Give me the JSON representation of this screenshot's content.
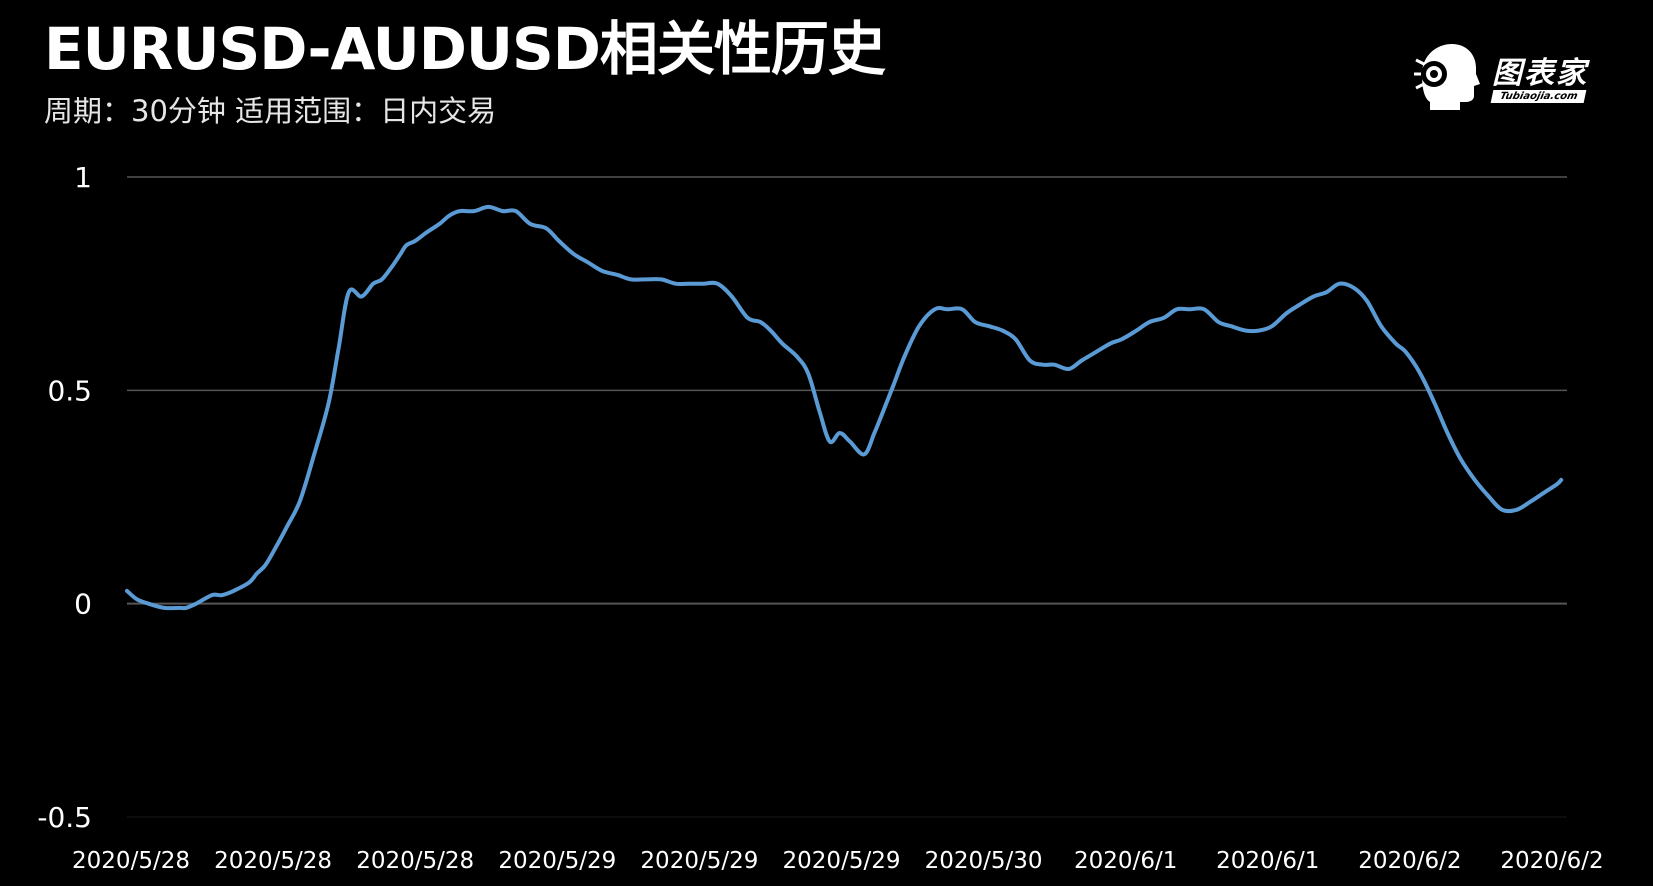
{
  "header": {
    "title": "EURUSD-AUDUSD相关性历史",
    "subtitle": "周期：30分钟  适用范围：日内交易"
  },
  "logo": {
    "brand": "图表家",
    "site": "Tubiaojia.com"
  },
  "colors": {
    "background": "#000000",
    "line": "#5b9bd5",
    "grid": "#555555",
    "text": "#ffffff"
  },
  "chart_data": {
    "type": "line",
    "title": "EURUSD-AUDUSD相关性历史",
    "subtitle": "周期：30分钟  适用范围：日内交易",
    "xlabel": "",
    "ylabel": "",
    "ylim": [
      -0.5,
      1
    ],
    "yticks": [
      1,
      0.5,
      0,
      -0.5
    ],
    "ytick_labels": [
      "1",
      "0.5",
      "0",
      "-0.5"
    ],
    "grid": true,
    "legend": "none",
    "x_tick_labels": [
      "2020/5/28",
      "2020/5/28",
      "2020/5/28",
      "2020/5/29",
      "2020/5/29",
      "2020/5/29",
      "2020/5/30",
      "2020/6/1",
      "2020/6/1",
      "2020/6/2",
      "2020/6/2"
    ],
    "x_index_range": [
      0,
      100
    ],
    "series": [
      {
        "color": "#5b9bd5",
        "x": [
          0,
          0.7,
          1.5,
          2.6,
          3.7,
          4.1,
          4.8,
          5.9,
          6.6,
          7.4,
          8.5,
          9,
          9.6,
          10.3,
          11.1,
          12,
          13,
          14,
          14.7,
          15.4,
          16.3,
          17.1,
          17.7,
          18.4,
          19,
          19.4,
          20,
          20.8,
          21.7,
          22.4,
          23.1,
          24.1,
          25.1,
          26.1,
          27,
          28,
          29.1,
          30,
          31,
          32,
          33,
          34.1,
          35,
          36,
          37.1,
          38.1,
          39,
          40,
          41,
          42,
          43.1,
          44,
          44.7,
          45.5,
          46.5,
          47.3,
          48.1,
          48.8,
          49.5,
          50.2,
          51.2,
          51.9,
          52.5,
          53.2,
          54,
          55,
          56.1,
          57,
          58,
          58.9,
          59.9,
          60.8,
          61.7,
          62.7,
          63.6,
          64.4,
          65.4,
          66.3,
          67.3,
          68.3,
          69.1,
          70.1,
          71,
          72,
          72.9,
          73.8,
          74.8,
          75.8,
          76.7,
          77.7,
          78.6,
          79.5,
          80.5,
          81.4,
          82.4,
          83.3,
          84.2,
          85.2,
          86.1,
          87.1,
          88.1,
          88.8,
          89.8,
          90.8,
          91.7,
          92.6,
          93.6,
          94.6,
          95.5,
          96.5,
          97.5,
          98.4,
          99.3,
          99.6
        ],
        "y": [
          0.03,
          0.01,
          0,
          -0.01,
          -0.01,
          -0.01,
          0,
          0.02,
          0.02,
          0.03,
          0.05,
          0.07,
          0.09,
          0.13,
          0.18,
          0.24,
          0.35,
          0.47,
          0.6,
          0.73,
          0.72,
          0.75,
          0.76,
          0.79,
          0.82,
          0.84,
          0.85,
          0.87,
          0.89,
          0.91,
          0.92,
          0.92,
          0.93,
          0.92,
          0.92,
          0.89,
          0.88,
          0.85,
          0.82,
          0.8,
          0.78,
          0.77,
          0.76,
          0.76,
          0.76,
          0.75,
          0.75,
          0.75,
          0.75,
          0.72,
          0.67,
          0.66,
          0.64,
          0.61,
          0.58,
          0.54,
          0.45,
          0.38,
          0.4,
          0.38,
          0.35,
          0.4,
          0.45,
          0.51,
          0.58,
          0.65,
          0.69,
          0.69,
          0.69,
          0.66,
          0.65,
          0.64,
          0.62,
          0.57,
          0.56,
          0.56,
          0.55,
          0.57,
          0.59,
          0.61,
          0.62,
          0.64,
          0.66,
          0.67,
          0.69,
          0.69,
          0.69,
          0.66,
          0.65,
          0.64,
          0.64,
          0.65,
          0.68,
          0.7,
          0.72,
          0.73,
          0.75,
          0.74,
          0.71,
          0.65,
          0.61,
          0.59,
          0.54,
          0.47,
          0.4,
          0.34,
          0.29,
          0.25,
          0.22,
          0.22,
          0.24,
          0.26,
          0.28,
          0.29
        ]
      }
    ]
  }
}
